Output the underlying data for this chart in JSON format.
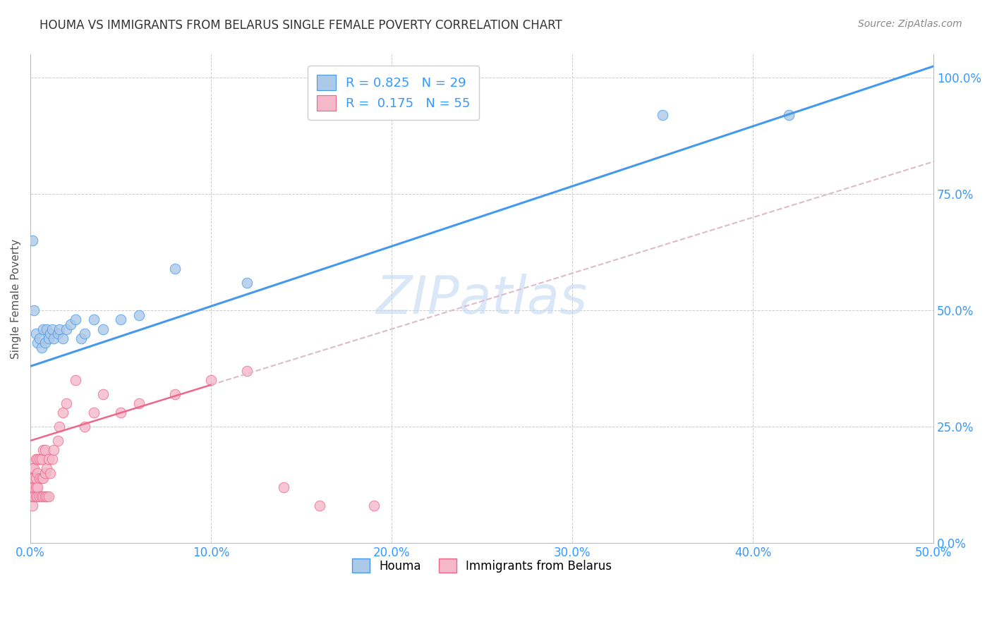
{
  "title": "HOUMA VS IMMIGRANTS FROM BELARUS SINGLE FEMALE POVERTY CORRELATION CHART",
  "source": "Source: ZipAtlas.com",
  "ylabel": "Single Female Poverty",
  "legend_label1": "Houma",
  "legend_label2": "Immigrants from Belarus",
  "R1": 0.825,
  "N1": 29,
  "R2": 0.175,
  "N2": 55,
  "color1": "#adc9e8",
  "color2": "#f5b8cb",
  "line1_color": "#4499ee",
  "line2_color": "#ee6688",
  "trendline2_dash_color": "#ddbbcc",
  "background_color": "#ffffff",
  "watermark": "ZIPatlas",
  "xlim": [
    0.0,
    0.5
  ],
  "ylim": [
    0.0,
    1.05
  ],
  "xtick_vals": [
    0.0,
    0.1,
    0.2,
    0.3,
    0.4,
    0.5
  ],
  "ytick_vals": [
    0.0,
    0.25,
    0.5,
    0.75,
    1.0
  ],
  "houma_x": [
    0.001,
    0.002,
    0.003,
    0.004,
    0.005,
    0.006,
    0.007,
    0.008,
    0.009,
    0.01,
    0.011,
    0.012,
    0.013,
    0.015,
    0.016,
    0.018,
    0.02,
    0.022,
    0.025,
    0.028,
    0.03,
    0.035,
    0.04,
    0.05,
    0.06,
    0.08,
    0.12,
    0.35,
    0.42
  ],
  "houma_y": [
    0.65,
    0.5,
    0.45,
    0.43,
    0.44,
    0.42,
    0.46,
    0.43,
    0.46,
    0.44,
    0.45,
    0.46,
    0.44,
    0.45,
    0.46,
    0.44,
    0.46,
    0.47,
    0.48,
    0.44,
    0.45,
    0.48,
    0.46,
    0.48,
    0.49,
    0.59,
    0.56,
    0.92,
    0.92
  ],
  "belarus_x": [
    0.0,
    0.0,
    0.0,
    0.001,
    0.001,
    0.001,
    0.001,
    0.001,
    0.002,
    0.002,
    0.002,
    0.002,
    0.003,
    0.003,
    0.003,
    0.003,
    0.004,
    0.004,
    0.004,
    0.004,
    0.005,
    0.005,
    0.005,
    0.006,
    0.006,
    0.006,
    0.007,
    0.007,
    0.007,
    0.008,
    0.008,
    0.008,
    0.009,
    0.009,
    0.01,
    0.01,
    0.011,
    0.012,
    0.013,
    0.015,
    0.016,
    0.018,
    0.02,
    0.025,
    0.03,
    0.035,
    0.04,
    0.05,
    0.06,
    0.08,
    0.1,
    0.12,
    0.14,
    0.16,
    0.19
  ],
  "belarus_y": [
    0.1,
    0.12,
    0.14,
    0.08,
    0.1,
    0.12,
    0.14,
    0.16,
    0.1,
    0.12,
    0.14,
    0.16,
    0.1,
    0.12,
    0.14,
    0.18,
    0.1,
    0.12,
    0.15,
    0.18,
    0.1,
    0.14,
    0.18,
    0.1,
    0.14,
    0.18,
    0.1,
    0.14,
    0.2,
    0.1,
    0.15,
    0.2,
    0.1,
    0.16,
    0.1,
    0.18,
    0.15,
    0.18,
    0.2,
    0.22,
    0.25,
    0.28,
    0.3,
    0.35,
    0.25,
    0.28,
    0.32,
    0.28,
    0.3,
    0.32,
    0.35,
    0.37,
    0.12,
    0.08,
    0.08
  ],
  "trendline1_x0": 0.0,
  "trendline1_y0": 0.38,
  "trendline1_x1": 0.5,
  "trendline1_y1": 1.025,
  "trendline2_solid_x0": 0.0,
  "trendline2_solid_y0": 0.22,
  "trendline2_solid_x1": 0.1,
  "trendline2_solid_y1": 0.34,
  "trendline2_dash_x0": 0.1,
  "trendline2_dash_y0": 0.34,
  "trendline2_dash_x1": 0.5,
  "trendline2_dash_y1": 0.82
}
